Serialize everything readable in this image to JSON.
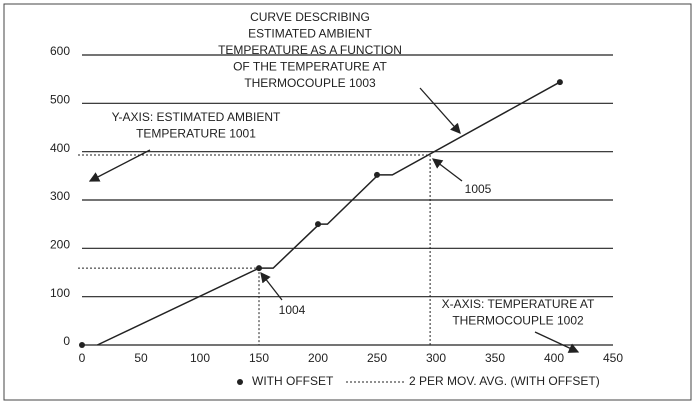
{
  "chart_data": {
    "type": "line",
    "annotations": [
      {
        "lines": [
          "CURVE DESCRIBING",
          "ESTIMATED AMBIENT",
          "TEMPERATURE AS A FUNCTION",
          "OF THE TEMPERATURE AT",
          "THERMOCOUPLE 1003"
        ]
      },
      {
        "lines": [
          "Y-AXIS: ESTIMATED AMBIENT",
          "TEMPERATURE 1001"
        ]
      },
      {
        "lines": [
          "X-AXIS: TEMPERATURE AT",
          "THERMOCOUPLE 1002"
        ]
      }
    ],
    "series": [
      {
        "name": "WITH OFFSET",
        "style": "points",
        "color": "#222222",
        "x": [
          0,
          150,
          200,
          250,
          405
        ],
        "values": [
          0,
          159,
          250,
          352,
          544
        ]
      },
      {
        "name": "2 PER MOV. AVG. (WITH OFFSET)",
        "style": "line",
        "color": "#222222",
        "x": [
          13,
          150,
          162,
          201,
          208,
          251,
          263,
          405
        ],
        "values": [
          0,
          159,
          159,
          250,
          250,
          352,
          352,
          544
        ]
      }
    ],
    "markers": [
      {
        "label": "1004",
        "x": 150,
        "y": 159
      },
      {
        "label": "1005",
        "x": 295,
        "y": 393
      }
    ],
    "xlim": [
      0,
      450
    ],
    "xticks": [
      0,
      50,
      100,
      150,
      200,
      250,
      300,
      350,
      400,
      450
    ],
    "ylim": [
      0,
      600
    ],
    "yticks": [
      0,
      100,
      200,
      300,
      400,
      500,
      600
    ],
    "grid": true
  }
}
